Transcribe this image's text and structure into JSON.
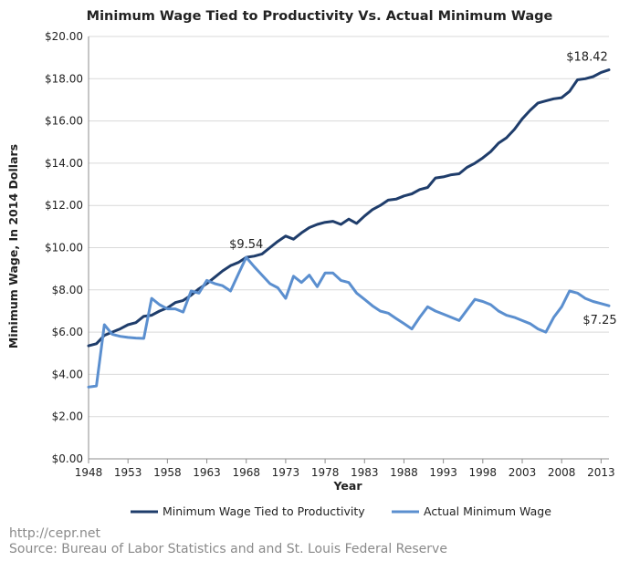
{
  "chart_data": {
    "type": "line",
    "title": "Minimum Wage Tied to Productivity Vs. Actual Minimum Wage",
    "xlabel": "Year",
    "ylabel": "Minimum Wage, In 2014 Dollars",
    "xlim": [
      1948,
      2014
    ],
    "ylim": [
      0,
      20
    ],
    "x_ticks": [
      1948,
      1953,
      1958,
      1963,
      1968,
      1973,
      1978,
      1983,
      1988,
      1993,
      1998,
      2003,
      2008,
      2013
    ],
    "y_ticks": [
      "$0.00",
      "$2.00",
      "$4.00",
      "$6.00",
      "$8.00",
      "$10.00",
      "$12.00",
      "$14.00",
      "$16.00",
      "$18.00",
      "$20.00"
    ],
    "grid": "horizontal",
    "legend": "bottom",
    "series": [
      {
        "name": "Minimum Wage Tied to Productivity",
        "color": "#1f3d6b",
        "points": [
          [
            1948,
            5.35
          ],
          [
            1949,
            5.45
          ],
          [
            1950,
            5.85
          ],
          [
            1951,
            6.0
          ],
          [
            1952,
            6.15
          ],
          [
            1953,
            6.35
          ],
          [
            1954,
            6.45
          ],
          [
            1955,
            6.75
          ],
          [
            1956,
            6.8
          ],
          [
            1957,
            7.0
          ],
          [
            1958,
            7.15
          ],
          [
            1959,
            7.4
          ],
          [
            1960,
            7.5
          ],
          [
            1961,
            7.75
          ],
          [
            1962,
            8.05
          ],
          [
            1963,
            8.3
          ],
          [
            1964,
            8.6
          ],
          [
            1965,
            8.9
          ],
          [
            1966,
            9.15
          ],
          [
            1967,
            9.3
          ],
          [
            1968,
            9.54
          ],
          [
            1969,
            9.6
          ],
          [
            1970,
            9.7
          ],
          [
            1971,
            10.0
          ],
          [
            1972,
            10.3
          ],
          [
            1973,
            10.55
          ],
          [
            1974,
            10.4
          ],
          [
            1975,
            10.7
          ],
          [
            1976,
            10.95
          ],
          [
            1977,
            11.1
          ],
          [
            1978,
            11.2
          ],
          [
            1979,
            11.25
          ],
          [
            1980,
            11.1
          ],
          [
            1981,
            11.35
          ],
          [
            1982,
            11.15
          ],
          [
            1983,
            11.5
          ],
          [
            1984,
            11.8
          ],
          [
            1985,
            12.0
          ],
          [
            1986,
            12.25
          ],
          [
            1987,
            12.3
          ],
          [
            1988,
            12.45
          ],
          [
            1989,
            12.55
          ],
          [
            1990,
            12.75
          ],
          [
            1991,
            12.85
          ],
          [
            1992,
            13.3
          ],
          [
            1993,
            13.35
          ],
          [
            1994,
            13.45
          ],
          [
            1995,
            13.5
          ],
          [
            1996,
            13.8
          ],
          [
            1997,
            14.0
          ],
          [
            1998,
            14.25
          ],
          [
            1999,
            14.55
          ],
          [
            2000,
            14.95
          ],
          [
            2001,
            15.2
          ],
          [
            2002,
            15.6
          ],
          [
            2003,
            16.1
          ],
          [
            2004,
            16.5
          ],
          [
            2005,
            16.85
          ],
          [
            2006,
            16.95
          ],
          [
            2007,
            17.05
          ],
          [
            2008,
            17.1
          ],
          [
            2009,
            17.4
          ],
          [
            2010,
            17.95
          ],
          [
            2011,
            18.0
          ],
          [
            2012,
            18.1
          ],
          [
            2013,
            18.3
          ],
          [
            2014,
            18.42
          ]
        ]
      },
      {
        "name": "Actual Minimum Wage",
        "color": "#5b8fcf",
        "points": [
          [
            1948,
            3.4
          ],
          [
            1949,
            3.45
          ],
          [
            1950,
            6.35
          ],
          [
            1951,
            5.9
          ],
          [
            1952,
            5.8
          ],
          [
            1953,
            5.75
          ],
          [
            1954,
            5.72
          ],
          [
            1955,
            5.7
          ],
          [
            1956,
            7.6
          ],
          [
            1957,
            7.3
          ],
          [
            1958,
            7.1
          ],
          [
            1959,
            7.1
          ],
          [
            1960,
            6.95
          ],
          [
            1961,
            7.95
          ],
          [
            1962,
            7.85
          ],
          [
            1963,
            8.45
          ],
          [
            1964,
            8.3
          ],
          [
            1965,
            8.2
          ],
          [
            1966,
            7.95
          ],
          [
            1967,
            8.75
          ],
          [
            1968,
            9.54
          ],
          [
            1969,
            9.1
          ],
          [
            1970,
            8.7
          ],
          [
            1971,
            8.3
          ],
          [
            1972,
            8.1
          ],
          [
            1973,
            7.6
          ],
          [
            1974,
            8.65
          ],
          [
            1975,
            8.35
          ],
          [
            1976,
            8.7
          ],
          [
            1977,
            8.15
          ],
          [
            1978,
            8.8
          ],
          [
            1979,
            8.8
          ],
          [
            1980,
            8.45
          ],
          [
            1981,
            8.35
          ],
          [
            1982,
            7.85
          ],
          [
            1983,
            7.55
          ],
          [
            1984,
            7.25
          ],
          [
            1985,
            7.0
          ],
          [
            1986,
            6.9
          ],
          [
            1987,
            6.65
          ],
          [
            1988,
            6.4
          ],
          [
            1989,
            6.15
          ],
          [
            1990,
            6.7
          ],
          [
            1991,
            7.2
          ],
          [
            1992,
            7.0
          ],
          [
            1993,
            6.85
          ],
          [
            1994,
            6.7
          ],
          [
            1995,
            6.55
          ],
          [
            1996,
            7.05
          ],
          [
            1997,
            7.55
          ],
          [
            1998,
            7.45
          ],
          [
            1999,
            7.3
          ],
          [
            2000,
            7.0
          ],
          [
            2001,
            6.8
          ],
          [
            2002,
            6.7
          ],
          [
            2003,
            6.55
          ],
          [
            2004,
            6.4
          ],
          [
            2005,
            6.15
          ],
          [
            2006,
            6.0
          ],
          [
            2007,
            6.7
          ],
          [
            2008,
            7.2
          ],
          [
            2009,
            7.95
          ],
          [
            2010,
            7.85
          ],
          [
            2011,
            7.6
          ],
          [
            2012,
            7.45
          ],
          [
            2013,
            7.35
          ],
          [
            2014,
            7.25
          ]
        ]
      }
    ],
    "annotations": [
      {
        "text": "$18.42",
        "x": 2014,
        "y": 18.42,
        "series": 0
      },
      {
        "text": "$9.54",
        "x": 1968,
        "y": 9.54,
        "series": 0
      },
      {
        "text": "$7.25",
        "x": 2014,
        "y": 7.25,
        "series": 1
      }
    ]
  },
  "footer": {
    "url": "http://cepr.net",
    "source": "Source: Bureau of Labor Statistics and and St. Louis Federal Reserve"
  }
}
